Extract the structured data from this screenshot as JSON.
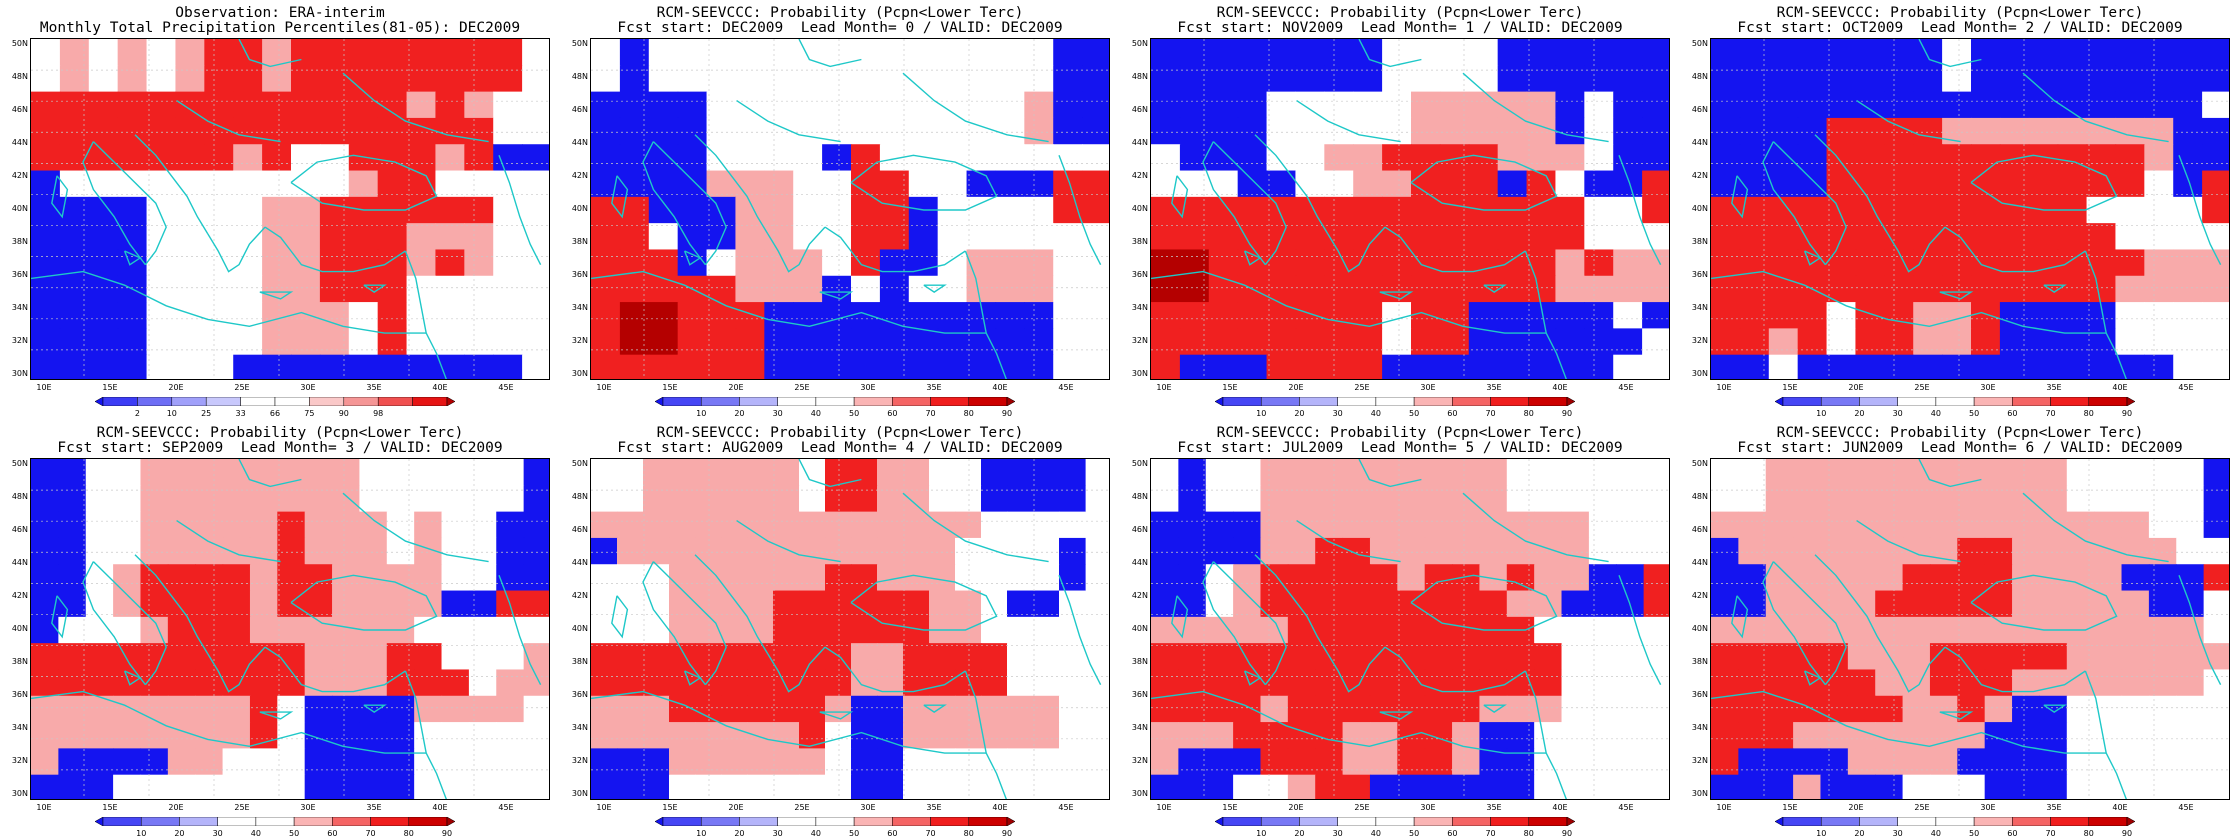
{
  "colors": {
    "land_outline": "#1ec8c8",
    "grid": "#c8c8c8",
    "prob_scale": [
      "#1414f0",
      "#4646f5",
      "#7878f5",
      "#b4b4fa",
      "#ffffff",
      "#ffffff",
      "#fab4b4",
      "#f56464",
      "#f01e1e",
      "#cd0000",
      "#a00000"
    ],
    "obs_scale": [
      "#1414f0",
      "#3c3cf5",
      "#6e6ef5",
      "#a0a0fa",
      "#c8c8fc",
      "#ffffff",
      "#ffffff",
      "#fac8c8",
      "#f59696",
      "#f05050",
      "#e61414",
      "#b40000"
    ]
  },
  "lat_labels": [
    "50N",
    "48N",
    "46N",
    "44N",
    "42N",
    "40N",
    "38N",
    "36N",
    "34N",
    "32N",
    "30N"
  ],
  "lon_labels": [
    "10E",
    "15E",
    "20E",
    "25E",
    "30E",
    "35E",
    "40E",
    "45E"
  ],
  "panels": [
    {
      "title1": "Observation: ERA-interim",
      "title2": "Monthly Total Precipitation Percentiles(81-05): DEC2009",
      "colorbar": "obs",
      "cb_labels": [
        "2",
        "10",
        "25",
        "33",
        "66",
        "75",
        "90",
        "98"
      ],
      "grid": [
        "wlwlwlmmlmmmmmmmmw",
        "wlwlwlmmlmmmmmmmmw",
        "mmmmmmmmmmmmmlmlww",
        "mmmmmmmmmmmmmmmmww",
        "mmmmmmmlmwwmmmlmbb",
        "bwwwwwwwwwwlmmwwww",
        "bbbbwwwwllmmmmmmww",
        "bbbbwwwwllmmmlllww",
        "bbbbwwwwllmmmlmlww",
        "bbbbwwwwllmmmwwwww",
        "bbbbwwwwlllwmwwwww",
        "bbbbwwwwlllwmwwwww",
        "bbbbwwwbbbbbbbbbbw"
      ]
    },
    {
      "title1": "RCM-SEEVCCC: Probability (Pcpn<Lower Terc)",
      "title2": "Fcst start: DEC2009  Lead Month= 0 / VALID: DEC2009",
      "colorbar": "prob",
      "cb_labels": [
        "10",
        "20",
        "30",
        "40",
        "50",
        "60",
        "70",
        "80",
        "90"
      ],
      "grid": [
        "wbwwwwwwwwwwwwwwbb",
        "wbwwwwwwwwwwwwwwbb",
        "bbbbwwwwwwwwwwwlbb",
        "bbbbwwwwwwwwwwwlbb",
        "bbbbwwwwbmwwwwwwww",
        "bbbblllwwmmwwbbbmm",
        "mmbbbllwwmmbwwwwmm",
        "mmwbbllwwmmbwwwwww",
        "mmmbwlllwmbbwlllww",
        "mmmmmlllbwbwwlllww",
        "mMMmmmbbbbbbbbbbww",
        "mMMmmmbbbbbbbbbbww",
        "mmmmmmbbbbbbbbbbww"
      ]
    },
    {
      "title1": "RCM-SEEVCCC: Probability (Pcpn<Lower Terc)",
      "title2": "Fcst start: NOV2009  Lead Month= 1 / VALID: DEC2009",
      "colorbar": "prob",
      "cb_labels": [
        "10",
        "20",
        "30",
        "40",
        "50",
        "60",
        "70",
        "80",
        "90"
      ],
      "grid": [
        "bbbbbbbbwwwwbbbbbb",
        "bbbbbbbbwwwwbbbbbb",
        "bbbbwwwwwlllllbwbb",
        "bbbbwwwwwlllllbwbb",
        "wbbbwwllmmmmlllwbb",
        "wwwbbwwllmmmbmwbbm",
        "mmmmmmmmmmmmmmmwwm",
        "mmmmmmmmmmmmmmmwww",
        "MMmmmmmmmmmmmmlmll",
        "MMmmmmmmmmmmmmllll",
        "mmmmmmmmwmmbbbbbwb",
        "mmmmmmmmwmmbbbbbbw",
        "mbbbmmmmbbbbbbbbww"
      ]
    },
    {
      "title1": "RCM-SEEVCCC: Probability (Pcpn<Lower Terc)",
      "title2": "Fcst start: OCT2009  Lead Month= 2 / VALID: DEC2009",
      "colorbar": "prob",
      "cb_labels": [
        "10",
        "20",
        "30",
        "40",
        "50",
        "60",
        "70",
        "80",
        "90"
      ],
      "grid": [
        "bbbbbbbbwbbbbbbbbb",
        "bbbbbbbbwbbbbbbbbb",
        "bbbbbbbbbbbbbbbbbw",
        "bbbbmmmmllllllllbb",
        "bbbbmmmmmmmmmmmlbb",
        "bbbbmmmmmmmmmmmwbm",
        "mmmmmmmmmmmmmwwwwm",
        "mmmmmmmmmmmmmmwwww",
        "mmmmmmmmmmmmmmmlll",
        "mmmmmmmmmmmmmmllll",
        "mmmmwmmllmbbbbwwww",
        "mmlmwmmllmbbbbwwww",
        "bbwbbbbbbbbbbbbbww"
      ]
    },
    {
      "title1": "RCM-SEEVCCC: Probability (Pcpn<Lower Terc)",
      "title2": "Fcst start: SEP2009  Lead Month= 3 / VALID: DEC2009",
      "colorbar": "prob",
      "cb_labels": [
        "10",
        "20",
        "30",
        "40",
        "50",
        "60",
        "70",
        "80",
        "90"
      ],
      "grid": [
        "bbwwllllllllwwwwwwb",
        "bbwwllllllllwwwwwwb",
        "bbwwlllllmlllwlwwbb",
        "bbwwlllllmlllwlwwbb",
        "bbwlmmmmlmmllllwwbb",
        "bbwlmmmmlmmllllbbmm",
        "bwwwlmmmllllllwwwww",
        "mmmmmmmmmmlllmmwwwl",
        "mmmmmmmmmmlllmmmwll",
        "llllllllmwbbbbllllw",
        "llllllllmwbbbbwwwww",
        "lbbbbllwwwbbbbwwwww",
        "bbbwwwwwwwbbbbwwwww"
      ]
    },
    {
      "title1": "RCM-SEEVCCC: Probability (Pcpn<Lower Terc)",
      "title2": "Fcst start: AUG2009  Lead Month= 4 / VALID: DEC2009",
      "colorbar": "prob",
      "cb_labels": [
        "10",
        "20",
        "30",
        "40",
        "50",
        "60",
        "70",
        "80",
        "90"
      ],
      "grid": [
        "wwllllllwmmllwwbbbb",
        "wwllllllwmmllwwbbbb",
        "lllllllllllllllwwww",
        "blllllllllllllwwwwb",
        "wwwllllllmmlllwwwwb",
        "wwwllllmmmmmmllwbbw",
        "wwwllllmmmmmmllwwww",
        "mmmmmmmmmmllmmmmwwww",
        "mmmmmmmmmmllmmmmwwww",
        "lllmmmmmmlbbllllllww",
        "llllllllmwbbllllllww",
        "bbbllllllwbbwwwwwwww",
        "bbbwwwwwwwbbwwwwwwww"
      ]
    },
    {
      "title1": "RCM-SEEVCCC: Probability (Pcpn<Lower Terc)",
      "title2": "Fcst start: JUL2009  Lead Month= 5 / VALID: DEC2009",
      "colorbar": "prob",
      "cb_labels": [
        "10",
        "20",
        "30",
        "40",
        "50",
        "60",
        "70",
        "80",
        "90"
      ],
      "grid": [
        "wbwwlllllllllwwwwww",
        "wbwwlllllllllwwwwww",
        "bbbbllllllllllllwww",
        "bbbbllmmllllllllwww",
        "bbwlmmmmmlmmlmllbbm",
        "bbwlmmmmmmmmmllbbbm",
        "lllllmmmmmmmmmwwwww",
        "mmmmmmmmmmmmmmmwwww",
        "mmmmmmmmmmmmmmmwwww",
        "mmmmlmmmmmmmlllwwww",
        "lllmmmmllmmlbbwwwww",
        "lbbbmmmllmmlbbwwwww",
        "bbbwwlmmbbbbbbwwwww"
      ]
    },
    {
      "title1": "RCM-SEEVCCC: Probability (Pcpn<Lower Terc)",
      "title2": "Fcst start: JUN2009  Lead Month= 6 / VALID: DEC2009",
      "colorbar": "prob",
      "cb_labels": [
        "10",
        "20",
        "30",
        "40",
        "50",
        "60",
        "70",
        "80",
        "90"
      ],
      "grid": [
        "wwlllllllllllwwwwwb",
        "wwlllllllllllwwwwwb",
        "llllllllllllllllwwb",
        "bllllllllmmllllllww",
        "bblllllmmmmllllbbbm",
        "bbllllmmmmmlllllbbw",
        "llllllllllllllllllw",
        "mmmmmlllmmmmmllllll",
        "mmmmmmllmmmlllllllw",
        "mmmmmmmllmlbbwwwwww",
        "mmmlllllllbbbwwwwww",
        "mbbbbllllbbbbwwwwww",
        "bbblbbbwwwbbbwwwwww"
      ]
    }
  ]
}
